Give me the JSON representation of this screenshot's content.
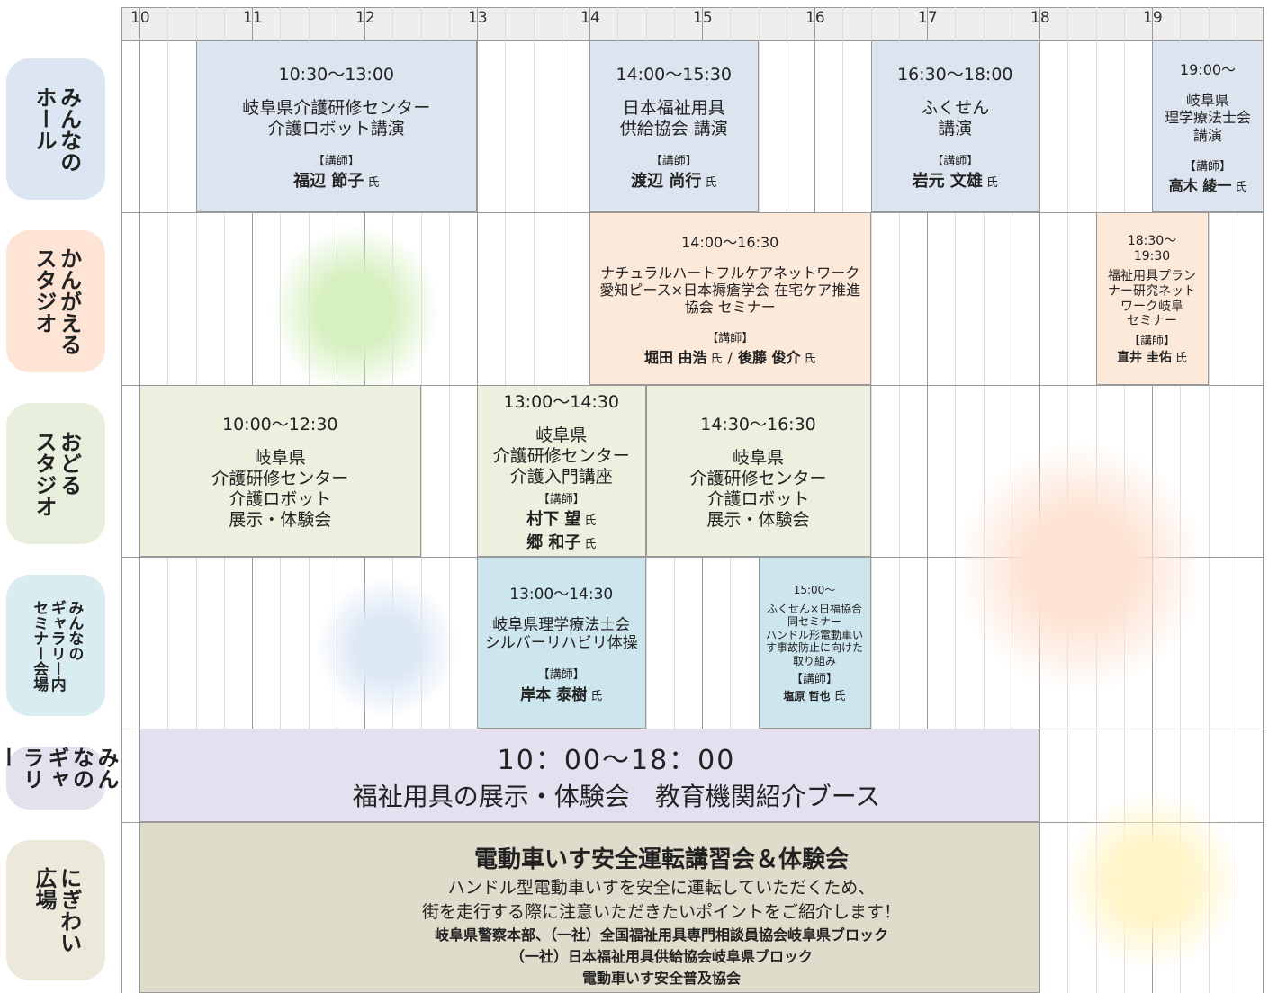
{
  "hours": [
    "10",
    "11",
    "12",
    "13",
    "14",
    "15",
    "16",
    "17",
    "18",
    "19"
  ],
  "lecturer_label": "【講師】",
  "honorific": "氏",
  "separator": "/",
  "rooms": [
    {
      "label": "みんなの\nホール",
      "events": [
        {
          "time": "10:30〜13:00",
          "title": "岐阜県介護研修センター\n介護ロボット講演",
          "lecturers": [
            "福辺 節子"
          ]
        },
        {
          "time": "14:00〜15:30",
          "title": "日本福祉用具\n供給協会 講演",
          "lecturers": [
            "渡辺 尚行"
          ]
        },
        {
          "time": "16:30〜18:00",
          "title": "ふくせん\n講演",
          "lecturers": [
            "岩元 文雄"
          ]
        },
        {
          "time": "19:00〜",
          "title": "岐阜県\n理学療法士会\n講演",
          "lecturers": [
            "高木 綾一"
          ]
        }
      ]
    },
    {
      "label": "かんがえる\nスタジオ",
      "events": [
        {
          "time": "14:00〜16:30",
          "title": "ナチュラルハートフルケアネットワーク\n愛知ピース×日本褥瘡学会 在宅ケア推進\n協会 セミナー",
          "lecturers": [
            "堀田 由浩",
            "後藤 俊介"
          ]
        },
        {
          "time": "18:30〜\n19:30",
          "title": "福祉用具プラン\nナー研究ネット\nワーク岐阜\nセミナー",
          "lecturers": [
            "直井 圭佑"
          ]
        }
      ]
    },
    {
      "label": "おどる\nスタジオ",
      "events": [
        {
          "time": "10:00〜12:30",
          "title": "岐阜県\n介護研修センター\n介護ロボット\n展示・体験会"
        },
        {
          "time": "13:00〜14:30",
          "title": "岐阜県\n介護研修センター\n介護入門講座",
          "lecturers": [
            "村下 望",
            "郷 和子"
          ]
        },
        {
          "time": "14:30〜16:30",
          "title": "岐阜県\n介護研修センター\n介護ロボット\n展示・体験会"
        }
      ]
    },
    {
      "label": "みんなの\nギャラリー内\nセミナー会場",
      "events": [
        {
          "time": "13:00〜14:30",
          "title": "岐阜県理学療法士会\nシルバーリハビリ体操",
          "lecturers": [
            "岸本 泰樹"
          ]
        },
        {
          "time": "15:00〜",
          "title": "ふくせん×日福協合\n同セミナー\nハンドル形電動車い\nす事故防止に向けた\n取り組み",
          "lecturers": [
            "塩原 哲也"
          ]
        }
      ]
    },
    {
      "label": "みんなの\nギャラリー",
      "events": [
        {
          "time": "10：00〜18：00",
          "title": "福祉用具の展示・体験会　教育機関紹介ブース"
        }
      ]
    },
    {
      "label": "にぎわい\n広場",
      "events": [
        {
          "title": "電動車いす安全運転講習会＆体験会",
          "lines": [
            "ハンドル型電動車いすを安全に運転していただくため、",
            "街を走行する際に注意いただきたいポイントをご紹介します！",
            "岐阜県警察本部、（一社）全国福祉用具専門相談員協会岐阜県ブロック",
            "（一社）日本福祉用具供給協会岐阜県ブロック",
            "電動車いす安全普及協会"
          ]
        }
      ]
    }
  ]
}
